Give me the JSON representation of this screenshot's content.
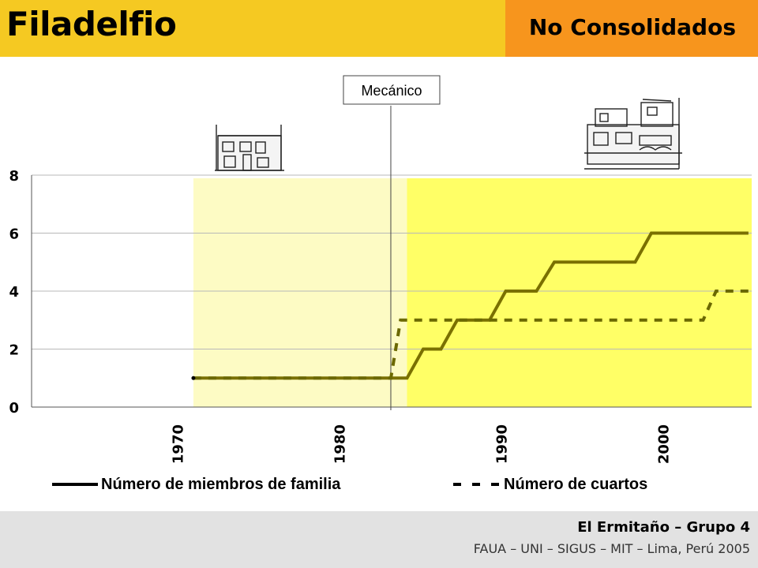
{
  "header": {
    "title": "Filadelfio",
    "subtitle": "No Consolidados"
  },
  "footer": {
    "line1": "El Ermitaño – Grupo 4",
    "line2": "FAUA – UNI – SIGUS – MIT – Lima, Perú 2005"
  },
  "colors": {
    "header_left": "#f5c922",
    "header_right": "#f7951d",
    "footer": "#e2e2e2",
    "band_light": "#fdfbc4",
    "band_bright": "#ffff66",
    "series_line": "#7a7000"
  },
  "chart_data": {
    "type": "line",
    "ylim": [
      0,
      8
    ],
    "xlim": [
      1961,
      2005.5
    ],
    "yticks": [
      "0",
      "2",
      "4",
      "6",
      "8"
    ],
    "xticks": [
      "1970",
      "1980",
      "1990",
      "2000"
    ],
    "grid": true,
    "legend_position": "bottom",
    "annotation": {
      "label": "Mecánico",
      "x": 1983.2
    },
    "bands": [
      {
        "x": [
          1971,
          1984.2
        ],
        "shade": "light"
      },
      {
        "x": [
          1984.2,
          2005.5
        ],
        "shade": "bright"
      }
    ],
    "series": [
      {
        "name": "Número de miembros de familia",
        "style": "solid",
        "points": [
          [
            1971,
            1
          ],
          [
            1984.2,
            1
          ],
          [
            1985.2,
            2
          ],
          [
            1986.3,
            2
          ],
          [
            1987.3,
            3
          ],
          [
            1989.3,
            3
          ],
          [
            1990.3,
            4
          ],
          [
            1992.2,
            4
          ],
          [
            1993.3,
            5
          ],
          [
            1998.3,
            5
          ],
          [
            1999.3,
            6
          ],
          [
            2005.3,
            6
          ]
        ]
      },
      {
        "name": "Número de cuartos",
        "style": "dashed",
        "points": [
          [
            1971,
            1
          ],
          [
            1983.2,
            1
          ],
          [
            1983.8,
            3
          ],
          [
            2002.5,
            3
          ],
          [
            2003.3,
            4
          ],
          [
            2005.3,
            4
          ]
        ]
      }
    ]
  }
}
